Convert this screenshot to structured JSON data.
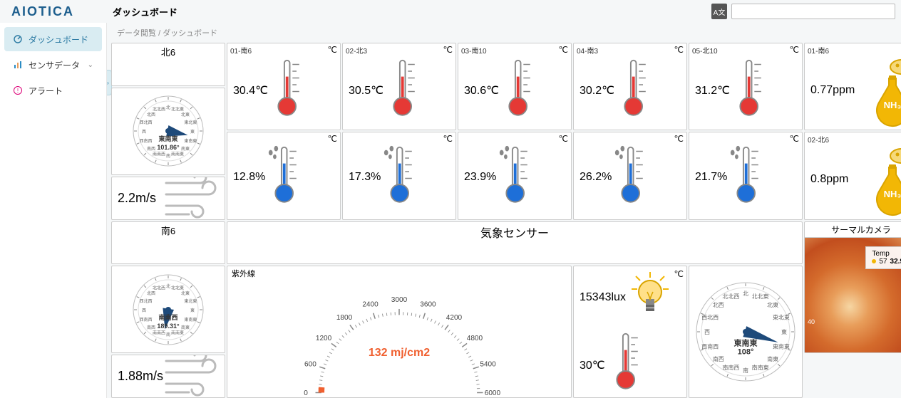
{
  "header": {
    "logo": "AIOTICA",
    "page_title": "ダッシュボード",
    "lang_label": "A文"
  },
  "sidebar": {
    "items": [
      {
        "icon": "dashboard-icon",
        "label": "ダッシュボード",
        "active": true
      },
      {
        "icon": "sensor-icon",
        "label": "センサデータ",
        "chevron": true
      },
      {
        "icon": "alert-icon",
        "label": "アラート"
      }
    ]
  },
  "breadcrumb": {
    "root": "データ閲覧",
    "sep": "/",
    "leaf": "ダッシュボード"
  },
  "colors": {
    "red": "#e53935",
    "blue": "#1e6fd8",
    "accent": "#2b8cc4",
    "nh3": "#f2b705",
    "grid_border": "#cccccc",
    "bg": "#ffffff"
  },
  "north6": {
    "header": "北6",
    "direction_label": "東南東",
    "direction_deg": 101.86,
    "wind_speed": "2.2m/s",
    "compass_labels": [
      "北",
      "北北東",
      "北東",
      "東北東",
      "東",
      "東南東",
      "南東",
      "南南東",
      "南",
      "南南西",
      "南西",
      "西南西",
      "西",
      "西北西",
      "北西",
      "北北西"
    ]
  },
  "south6": {
    "header": "南6",
    "direction_label": "南南西",
    "direction_deg": 189.31,
    "wind_speed": "1.88m/s"
  },
  "temp_row": [
    {
      "label": "01-南6",
      "value": "30.4℃"
    },
    {
      "label": "02-北3",
      "value": "30.5℃"
    },
    {
      "label": "03-南10",
      "value": "30.6℃"
    },
    {
      "label": "04-南3",
      "value": "30.2℃"
    },
    {
      "label": "05-北10",
      "value": "31.2℃"
    }
  ],
  "hum_row": [
    {
      "value": "12.8%"
    },
    {
      "value": "17.3%"
    },
    {
      "value": "23.9%"
    },
    {
      "value": "26.2%"
    },
    {
      "value": "21.7%"
    }
  ],
  "nh3": [
    {
      "label": "01-南6",
      "value": "0.77ppm"
    },
    {
      "label": "02-北6",
      "value": "0.8ppm"
    }
  ],
  "weather_header": "気象センサー",
  "thermal_header": "サーマルカメラ",
  "uv": {
    "label": "紫外線",
    "value": "132 mj/cm2",
    "min": 0,
    "max": 6000,
    "ticks": [
      0,
      600,
      1200,
      1800,
      2400,
      3000,
      3600,
      4200,
      4800,
      5400,
      6000
    ]
  },
  "lux": {
    "value": "15343lux",
    "temp": "30℃"
  },
  "weather_compass": {
    "direction_label": "東南東",
    "direction_deg": 108
  },
  "thermal": {
    "legend_title": "Temp",
    "legend_count": 57,
    "legend_val": "32.9",
    "axis_label": "40"
  }
}
